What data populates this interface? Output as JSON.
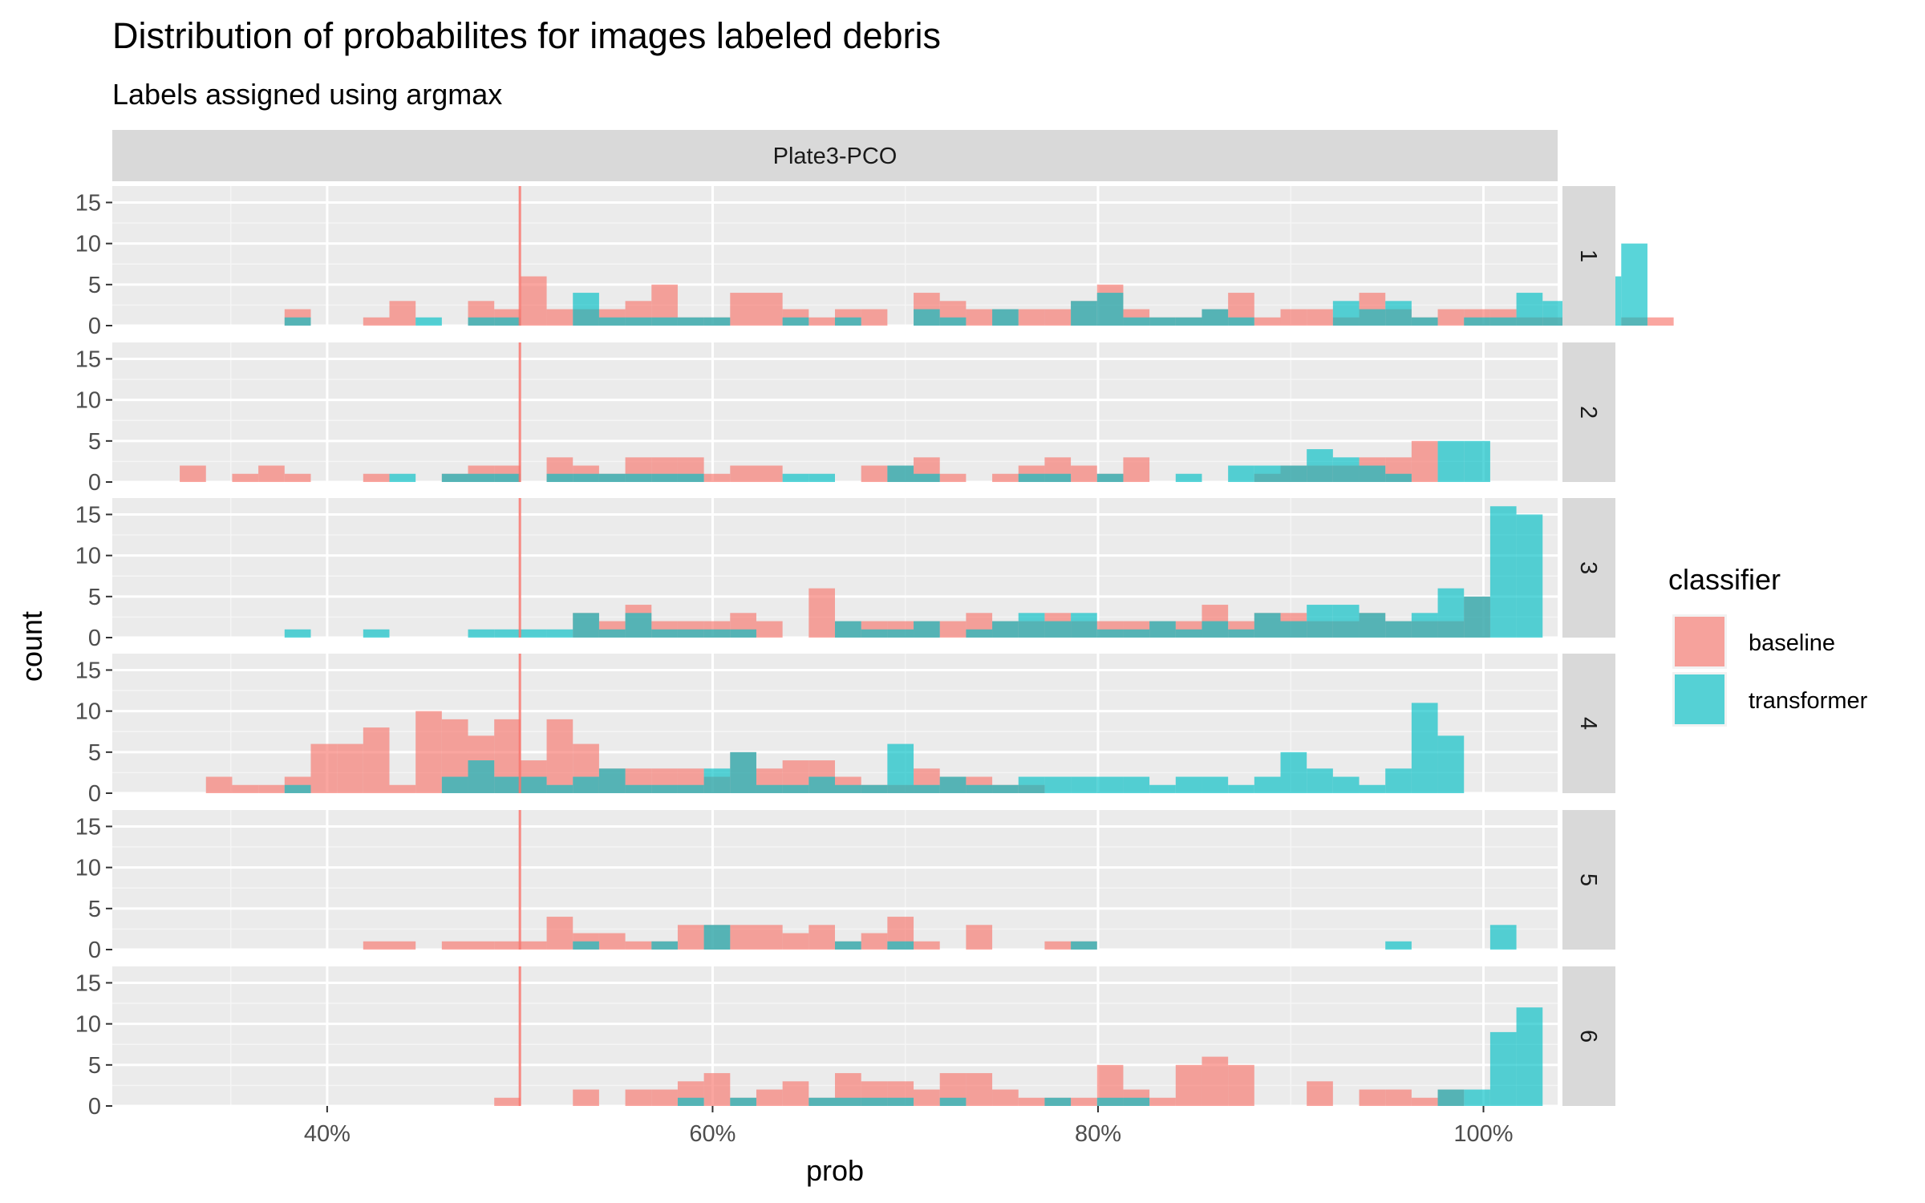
{
  "chart_data": {
    "type": "bar",
    "title": "Distribution of probabilites for images labeled debris",
    "subtitle": "Labels assigned using argmax",
    "xlabel": "prob",
    "ylabel": "count",
    "strip_top": "Plate3-PCO",
    "x_ticks": [
      {
        "value": 0.4,
        "label": "40%"
      },
      {
        "value": 0.6,
        "label": "60%"
      },
      {
        "value": 0.8,
        "label": "80%"
      },
      {
        "value": 1.0,
        "label": "100%"
      }
    ],
    "y_ticks": [
      0,
      5,
      10,
      15
    ],
    "xlim": [
      0.2885,
      1.0385
    ],
    "ylim": [
      0,
      17
    ],
    "bin_start": 0.3235,
    "bin_width": 0.0136,
    "vline": {
      "x": 0.5,
      "color": "#F8766D"
    },
    "grid": true,
    "legend": {
      "title": "classifier",
      "position": "right",
      "entries": [
        {
          "name": "baseline",
          "color": "#F8766D"
        },
        {
          "name": "transformer",
          "color": "#00BFC4"
        }
      ]
    },
    "panels": [
      {
        "label": "1",
        "series": [
          {
            "name": "baseline",
            "values": [
              0,
              0,
              0,
              0,
              2,
              0,
              0,
              1,
              3,
              0,
              0,
              3,
              2,
              6,
              2,
              2,
              2,
              3,
              5,
              1,
              1,
              4,
              4,
              2,
              1,
              2,
              2,
              0,
              4,
              3,
              2,
              2,
              2,
              2,
              3,
              5,
              2,
              1,
              1,
              2,
              4,
              1,
              2,
              2,
              1,
              4,
              2,
              1,
              2,
              2,
              2,
              1,
              1,
              0,
              0,
              1,
              1,
              0
            ]
          },
          {
            "name": "transformer",
            "values": [
              0,
              0,
              0,
              0,
              1,
              0,
              0,
              0,
              0,
              1,
              0,
              1,
              1,
              0,
              0,
              4,
              1,
              1,
              1,
              1,
              1,
              0,
              0,
              1,
              0,
              1,
              0,
              0,
              2,
              1,
              0,
              2,
              0,
              0,
              3,
              4,
              1,
              1,
              1,
              2,
              1,
              0,
              0,
              0,
              3,
              2,
              3,
              1,
              0,
              1,
              1,
              4,
              3,
              2,
              6,
              10,
              0,
              0
            ]
          }
        ]
      },
      {
        "label": "2",
        "series": [
          {
            "name": "baseline",
            "values": [
              2,
              0,
              1,
              2,
              1,
              0,
              0,
              1,
              0,
              0,
              1,
              2,
              2,
              0,
              3,
              2,
              1,
              3,
              3,
              3,
              1,
              2,
              2,
              0,
              0,
              0,
              2,
              2,
              3,
              1,
              0,
              1,
              2,
              3,
              2,
              1,
              3,
              0,
              0,
              0,
              0,
              1,
              2,
              2,
              2,
              3,
              3,
              5,
              0
            ]
          },
          {
            "name": "transformer",
            "values": [
              0,
              0,
              0,
              0,
              0,
              0,
              0,
              0,
              1,
              0,
              1,
              1,
              1,
              0,
              1,
              1,
              1,
              1,
              1,
              1,
              0,
              0,
              0,
              1,
              1,
              0,
              0,
              2,
              1,
              0,
              0,
              0,
              1,
              1,
              0,
              1,
              0,
              0,
              1,
              0,
              2,
              2,
              2,
              4,
              3,
              2,
              1,
              0,
              5,
              5
            ]
          }
        ]
      },
      {
        "label": "3",
        "series": [
          {
            "name": "baseline",
            "values": [
              0,
              0,
              0,
              0,
              0,
              0,
              0,
              0,
              0,
              0,
              0,
              0,
              0,
              0,
              0,
              3,
              2,
              4,
              2,
              2,
              2,
              3,
              2,
              0,
              6,
              2,
              2,
              2,
              2,
              2,
              3,
              2,
              2,
              3,
              2,
              2,
              2,
              2,
              2,
              4,
              2,
              3,
              3,
              2,
              2,
              3,
              2,
              2,
              2,
              5,
              0,
              0
            ]
          },
          {
            "name": "transformer",
            "values": [
              0,
              0,
              0,
              0,
              1,
              0,
              0,
              1,
              0,
              0,
              0,
              1,
              1,
              1,
              1,
              3,
              1,
              3,
              1,
              1,
              1,
              1,
              0,
              0,
              0,
              2,
              1,
              1,
              2,
              0,
              1,
              2,
              3,
              2,
              3,
              1,
              1,
              2,
              1,
              2,
              1,
              3,
              2,
              4,
              4,
              3,
              2,
              3,
              6,
              5,
              16,
              15
            ]
          }
        ]
      },
      {
        "label": "4",
        "series": [
          {
            "name": "baseline",
            "values": [
              0,
              2,
              1,
              1,
              2,
              6,
              6,
              8,
              1,
              10,
              9,
              7,
              9,
              4,
              9,
              6,
              3,
              3,
              3,
              3,
              2,
              5,
              3,
              4,
              4,
              2,
              1,
              1,
              3,
              2,
              2,
              1,
              1,
              0,
              0,
              0,
              0,
              0,
              0,
              0,
              0,
              0,
              0,
              0,
              0,
              0,
              0,
              0,
              0,
              0,
              0,
              0
            ]
          },
          {
            "name": "transformer",
            "values": [
              0,
              0,
              0,
              0,
              1,
              0,
              0,
              0,
              0,
              0,
              2,
              4,
              2,
              2,
              1,
              2,
              3,
              1,
              1,
              1,
              3,
              5,
              1,
              1,
              2,
              1,
              1,
              6,
              1,
              2,
              1,
              1,
              2,
              2,
              2,
              2,
              2,
              1,
              2,
              2,
              1,
              2,
              5,
              3,
              2,
              1,
              3,
              11,
              7
            ]
          }
        ]
      },
      {
        "label": "5",
        "series": [
          {
            "name": "baseline",
            "values": [
              0,
              0,
              0,
              0,
              0,
              0,
              0,
              1,
              1,
              0,
              1,
              1,
              1,
              1,
              4,
              2,
              2,
              1,
              1,
              3,
              3,
              3,
              3,
              2,
              3,
              1,
              2,
              4,
              1,
              0,
              3,
              0,
              0,
              1,
              1,
              0,
              0,
              0,
              0,
              0,
              0,
              0,
              0,
              0,
              0,
              0,
              0,
              0,
              0
            ]
          },
          {
            "name": "transformer",
            "values": [
              0,
              0,
              0,
              0,
              0,
              0,
              0,
              0,
              0,
              0,
              0,
              0,
              0,
              0,
              0,
              1,
              0,
              0,
              1,
              0,
              3,
              0,
              0,
              0,
              0,
              1,
              0,
              1,
              0,
              0,
              0,
              0,
              0,
              0,
              1,
              0,
              0,
              0,
              0,
              0,
              0,
              0,
              0,
              0,
              0,
              0,
              1,
              0,
              0,
              0,
              3,
              0
            ]
          }
        ]
      },
      {
        "label": "6",
        "series": [
          {
            "name": "baseline",
            "values": [
              0,
              0,
              0,
              0,
              0,
              0,
              0,
              0,
              0,
              0,
              0,
              0,
              1,
              0,
              0,
              2,
              0,
              2,
              2,
              3,
              4,
              1,
              2,
              3,
              1,
              4,
              3,
              3,
              2,
              4,
              4,
              2,
              1,
              1,
              1,
              5,
              2,
              1,
              5,
              6,
              5,
              0,
              0,
              3,
              0,
              2,
              2,
              1,
              2,
              0,
              0,
              0
            ]
          },
          {
            "name": "transformer",
            "values": [
              0,
              0,
              0,
              0,
              0,
              0,
              0,
              0,
              0,
              0,
              0,
              0,
              0,
              0,
              0,
              0,
              0,
              0,
              0,
              1,
              0,
              1,
              0,
              0,
              1,
              1,
              1,
              1,
              0,
              1,
              0,
              0,
              0,
              1,
              0,
              1,
              1,
              0,
              0,
              0,
              0,
              0,
              0,
              0,
              0,
              0,
              0,
              0,
              2,
              2,
              9,
              12
            ]
          }
        ]
      }
    ]
  }
}
